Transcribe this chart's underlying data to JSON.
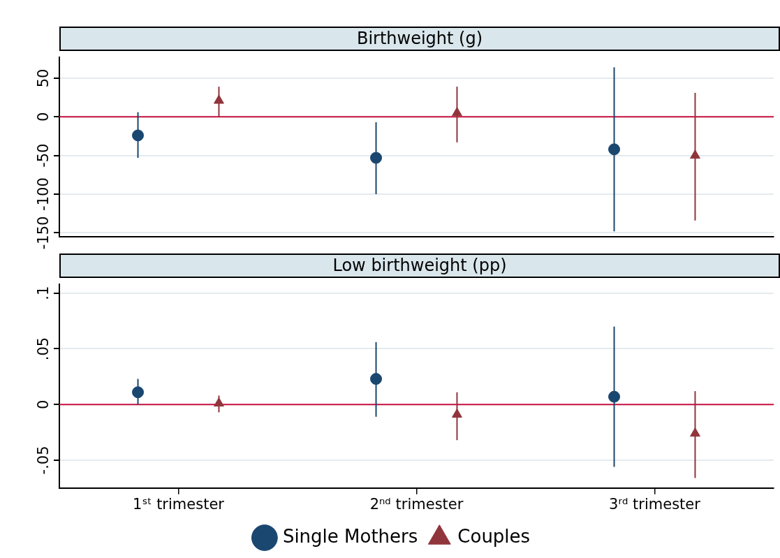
{
  "chart_data": [
    {
      "type": "scatter",
      "title": "Birthweight (g)",
      "xlim": [
        0.5,
        3.5
      ],
      "ylim": [
        -155,
        77
      ],
      "yticks": [
        -150,
        -100,
        -50,
        0,
        50
      ],
      "grid": "y",
      "legend": false,
      "tick_labels": "y",
      "ref_lines": [
        {
          "axis": "y",
          "value": 0,
          "color": "#c8103e"
        }
      ],
      "series": [
        {
          "color": "#1a476f",
          "marker": "circle",
          "x": [
            0.83,
            1.83,
            2.83
          ],
          "values": [
            -24,
            -53,
            -42
          ],
          "errors": [
            [
              -53,
              6
            ],
            [
              -100,
              -7
            ],
            [
              -148,
              64
            ]
          ]
        },
        {
          "color": "#90353b",
          "marker": "triangle",
          "x": [
            1.17,
            2.17,
            3.17
          ],
          "values": [
            21,
            5,
            -50
          ],
          "errors": [
            [
              0,
              39
            ],
            [
              -33,
              39
            ],
            [
              -134,
              31
            ]
          ]
        }
      ]
    },
    {
      "type": "scatter",
      "title": "Low birthweight (pp)",
      "xlim": [
        0.5,
        3.5
      ],
      "xticks": [
        {
          "value": 1,
          "label": "1ˢᵗ trimester"
        },
        {
          "value": 2,
          "label": "2ⁿᵈ trimester"
        },
        {
          "value": 3,
          "label": "3ʳᵈ trimester"
        }
      ],
      "ylim": [
        -0.075,
        0.108
      ],
      "yticks": [
        {
          "value": -0.05,
          "label": "-.05"
        },
        0,
        {
          "value": 0.05,
          "label": ".05"
        },
        {
          "value": 0.1,
          "label": ".1"
        }
      ],
      "grid": "y",
      "legend": "bottom",
      "ref_lines": [
        {
          "axis": "y",
          "value": 0,
          "color": "#c8103e"
        }
      ],
      "series": [
        {
          "name": "Single Mothers",
          "color": "#1a476f",
          "marker": "circle",
          "x": [
            0.83,
            1.83,
            2.83
          ],
          "values": [
            0.011,
            0.023,
            0.007
          ],
          "errors": [
            [
              0,
              0.023
            ],
            [
              -0.011,
              0.056
            ],
            [
              -0.056,
              0.07
            ]
          ]
        },
        {
          "name": "Couples",
          "color": "#90353b",
          "marker": "triangle",
          "x": [
            1.17,
            2.17,
            3.17
          ],
          "values": [
            0.001,
            -0.009,
            -0.026
          ],
          "errors": [
            [
              -0.007,
              0.008
            ],
            [
              -0.032,
              0.011
            ],
            [
              -0.066,
              0.012
            ]
          ]
        }
      ]
    }
  ]
}
